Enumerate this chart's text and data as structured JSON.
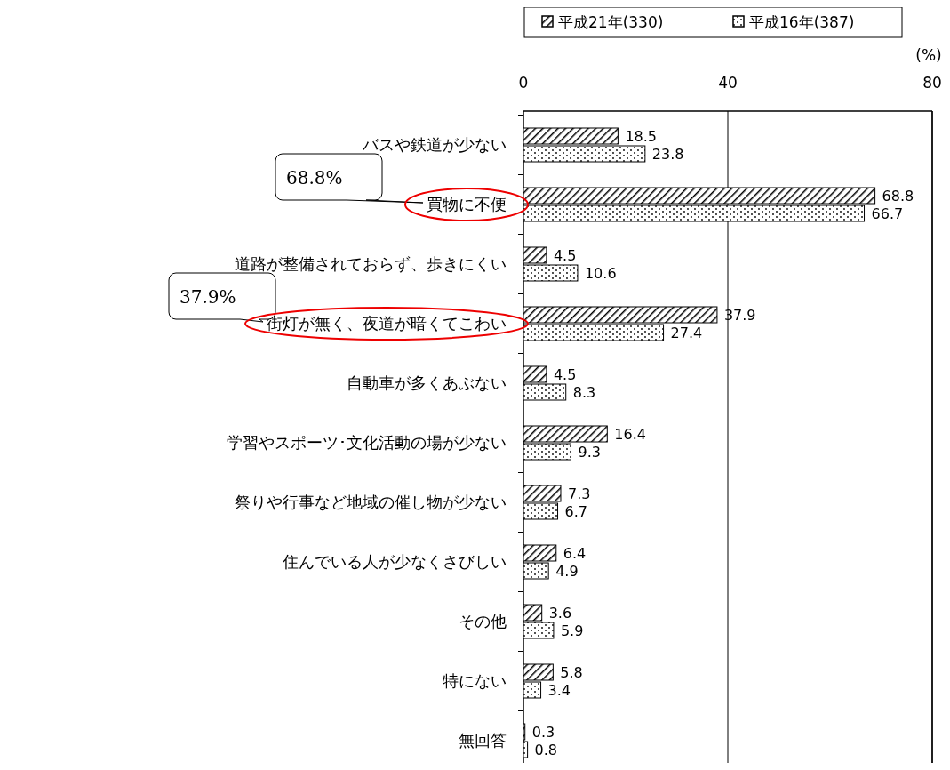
{
  "chart_data": {
    "type": "bar",
    "orientation": "horizontal",
    "xlabel": "(%)",
    "categories": [
      "バスや鉄道が少ない",
      "買物に不便",
      "道路が整備されておらず、歩きにくい",
      "街灯が無く、夜道が暗くてこわい",
      "自動車が多くあぶない",
      "学習やスポーツ･文化活動の場が少ない",
      "祭りや行事など地域の催し物が少ない",
      "住んでいる人が少なくさびしい",
      "その他",
      "特にない",
      "無回答"
    ],
    "series": [
      {
        "name": "平成21年(330)",
        "color": "#000000",
        "values": [
          18.5,
          68.8,
          4.5,
          37.9,
          4.5,
          16.4,
          7.3,
          6.4,
          3.6,
          5.8,
          0.3
        ]
      },
      {
        "name": "平成16年(387)",
        "color": "#000000",
        "values": [
          23.8,
          66.7,
          10.6,
          27.4,
          8.3,
          9.3,
          6.7,
          4.9,
          5.9,
          3.4,
          0.8
        ]
      }
    ],
    "xlim": [
      0,
      80
    ],
    "xticks": [
      0,
      40,
      80
    ],
    "grid": "x",
    "legend": "top",
    "data_labels": true,
    "annotations": [
      "68.8%",
      "37.9%"
    ]
  }
}
